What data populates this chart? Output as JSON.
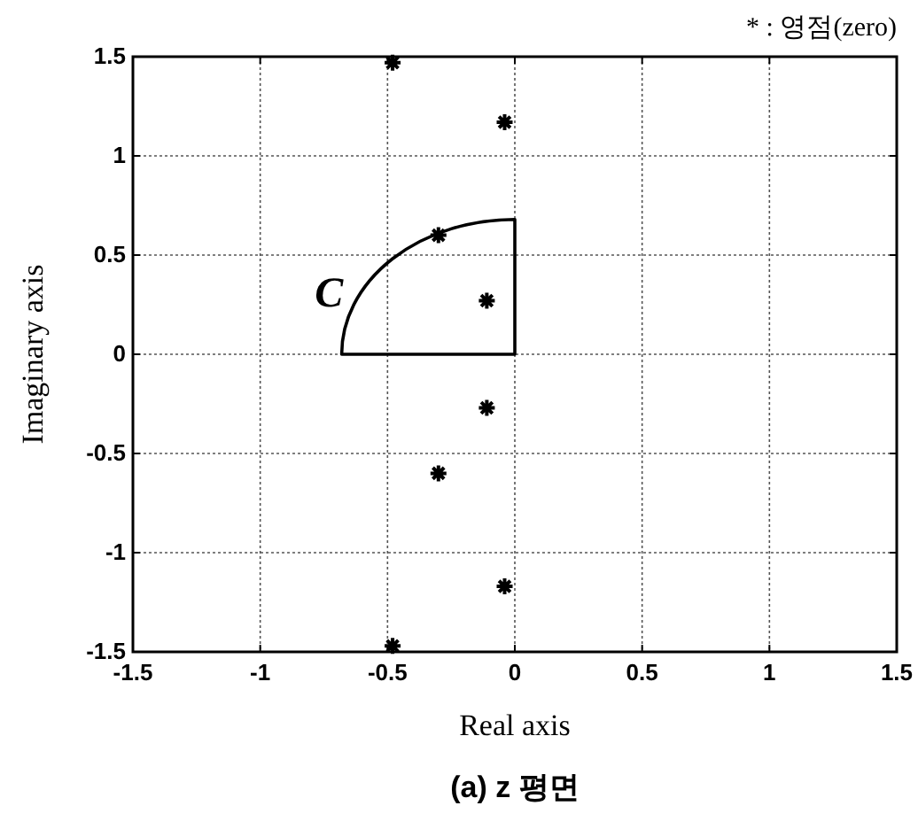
{
  "chart_data": {
    "type": "scatter",
    "title": "(a) z 평면",
    "xlabel": "Real axis",
    "ylabel": "Imaginary axis",
    "annotations": [
      "* : 영점(zero)",
      "C"
    ],
    "xlim": [
      -1.5,
      1.5
    ],
    "ylim": [
      -1.5,
      1.5
    ],
    "xticks": [
      -1.5,
      -1,
      -0.5,
      0,
      0.5,
      1,
      1.5
    ],
    "yticks": [
      -1.5,
      -1,
      -0.5,
      0,
      0.5,
      1,
      1.5
    ],
    "grid": true,
    "marker": "cross",
    "series": [
      {
        "color": "#000000",
        "x": [
          -0.48,
          -0.04,
          -0.3,
          -0.11,
          -0.11,
          -0.3,
          -0.04,
          -0.48
        ],
        "values": [
          1.47,
          1.17,
          0.6,
          0.27,
          -0.27,
          -0.6,
          -1.17,
          -1.47
        ]
      }
    ]
  }
}
